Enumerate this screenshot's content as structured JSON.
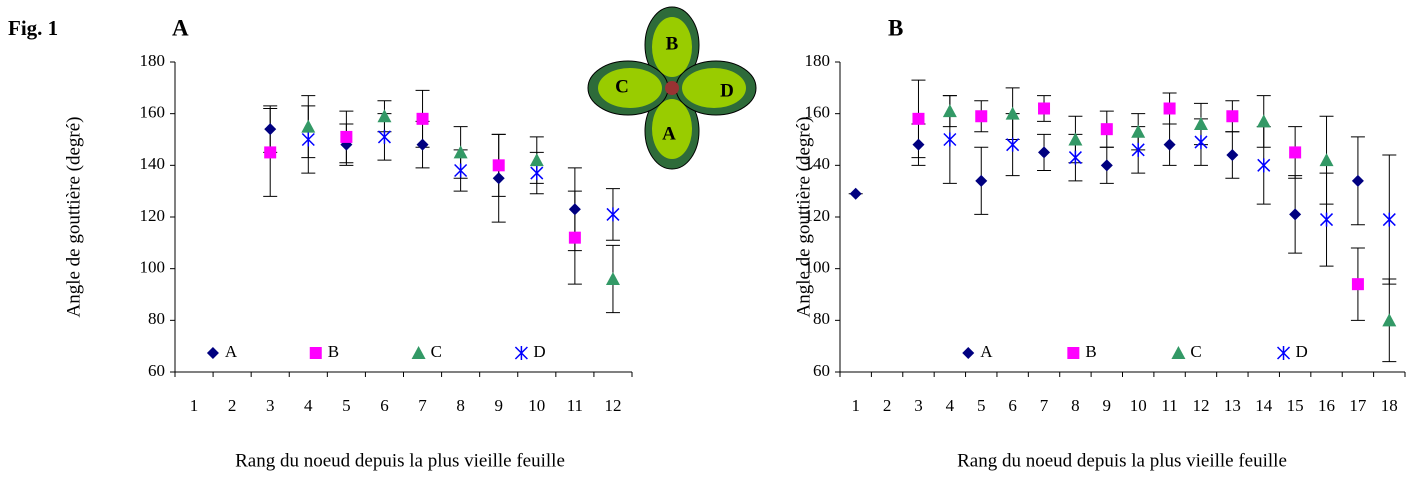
{
  "figure_label": "Fig. 1",
  "inset": {
    "labels": [
      "B",
      "C",
      "D",
      "A"
    ]
  },
  "chart_data": [
    {
      "type": "scatter",
      "title": "A",
      "x_label": "Rang du noeud depuis la plus vieille feuille",
      "y_label": "Angle de gouttière (degré)",
      "categories": [
        1,
        2,
        3,
        4,
        5,
        6,
        7,
        8,
        9,
        10,
        11,
        12
      ],
      "ylim": [
        60,
        180
      ],
      "yticks": [
        60,
        80,
        100,
        120,
        140,
        160,
        180
      ],
      "legend": "lower center",
      "series": [
        {
          "name": "A",
          "color": "#000080",
          "marker": "diamond",
          "values": [
            null,
            null,
            154,
            null,
            148,
            null,
            148,
            null,
            135,
            null,
            123,
            null
          ],
          "errors": [
            null,
            null,
            9,
            null,
            8,
            null,
            9,
            null,
            17,
            null,
            16,
            null
          ]
        },
        {
          "name": "B",
          "color": "#ff00ff",
          "marker": "square",
          "values": [
            null,
            null,
            145,
            null,
            151,
            null,
            158,
            null,
            140,
            null,
            112,
            null
          ],
          "errors": [
            null,
            null,
            17,
            null,
            10,
            null,
            11,
            null,
            12,
            null,
            18,
            null
          ]
        },
        {
          "name": "C",
          "color": "#339966",
          "marker": "triangle",
          "values": [
            null,
            null,
            null,
            155,
            null,
            159,
            null,
            145,
            null,
            142,
            null,
            96
          ],
          "errors": [
            null,
            null,
            null,
            12,
            null,
            6,
            null,
            10,
            null,
            9,
            null,
            13
          ]
        },
        {
          "name": "D",
          "color": "#0000ff",
          "marker": "asterisk",
          "values": [
            null,
            null,
            null,
            150,
            null,
            151,
            null,
            138,
            null,
            137,
            null,
            121
          ],
          "errors": [
            null,
            null,
            null,
            13,
            null,
            9,
            null,
            8,
            null,
            8,
            null,
            10
          ]
        }
      ]
    },
    {
      "type": "scatter",
      "title": "B",
      "x_label": "Rang du noeud depuis la plus vieille feuille",
      "y_label": "Angle de gouttière (degré)",
      "categories": [
        1,
        2,
        3,
        4,
        5,
        6,
        7,
        8,
        9,
        10,
        11,
        12,
        13,
        14,
        15,
        16,
        17,
        18
      ],
      "ylim": [
        60,
        180
      ],
      "yticks": [
        60,
        80,
        100,
        120,
        140,
        160,
        180
      ],
      "legend": "lower center",
      "series": [
        {
          "name": "A",
          "color": "#000080",
          "marker": "diamond",
          "values": [
            129,
            null,
            148,
            null,
            134,
            null,
            145,
            null,
            140,
            null,
            148,
            null,
            144,
            null,
            121,
            null,
            134,
            null
          ],
          "errors": [
            0,
            null,
            8,
            null,
            13,
            null,
            7,
            null,
            7,
            null,
            8,
            null,
            9,
            null,
            15,
            null,
            17,
            null
          ]
        },
        {
          "name": "B",
          "color": "#ff00ff",
          "marker": "square",
          "values": [
            null,
            null,
            158,
            null,
            159,
            null,
            162,
            null,
            154,
            null,
            162,
            null,
            159,
            null,
            145,
            null,
            94,
            null
          ],
          "errors": [
            null,
            null,
            15,
            null,
            6,
            null,
            5,
            null,
            7,
            null,
            6,
            null,
            6,
            null,
            10,
            null,
            14,
            null
          ]
        },
        {
          "name": "C",
          "color": "#339966",
          "marker": "triangle",
          "values": [
            null,
            null,
            null,
            161,
            null,
            160,
            null,
            150,
            null,
            153,
            null,
            156,
            null,
            157,
            null,
            142,
            null,
            80
          ],
          "errors": [
            null,
            null,
            null,
            6,
            null,
            10,
            null,
            9,
            null,
            7,
            null,
            8,
            null,
            10,
            null,
            17,
            null,
            16
          ]
        },
        {
          "name": "D",
          "color": "#0000ff",
          "marker": "asterisk",
          "values": [
            null,
            null,
            null,
            150,
            null,
            148,
            null,
            143,
            null,
            146,
            null,
            149,
            null,
            140,
            null,
            119,
            null,
            119
          ],
          "errors": [
            null,
            null,
            null,
            17,
            null,
            12,
            null,
            9,
            null,
            9,
            null,
            9,
            null,
            15,
            null,
            18,
            null,
            25
          ]
        }
      ]
    }
  ]
}
